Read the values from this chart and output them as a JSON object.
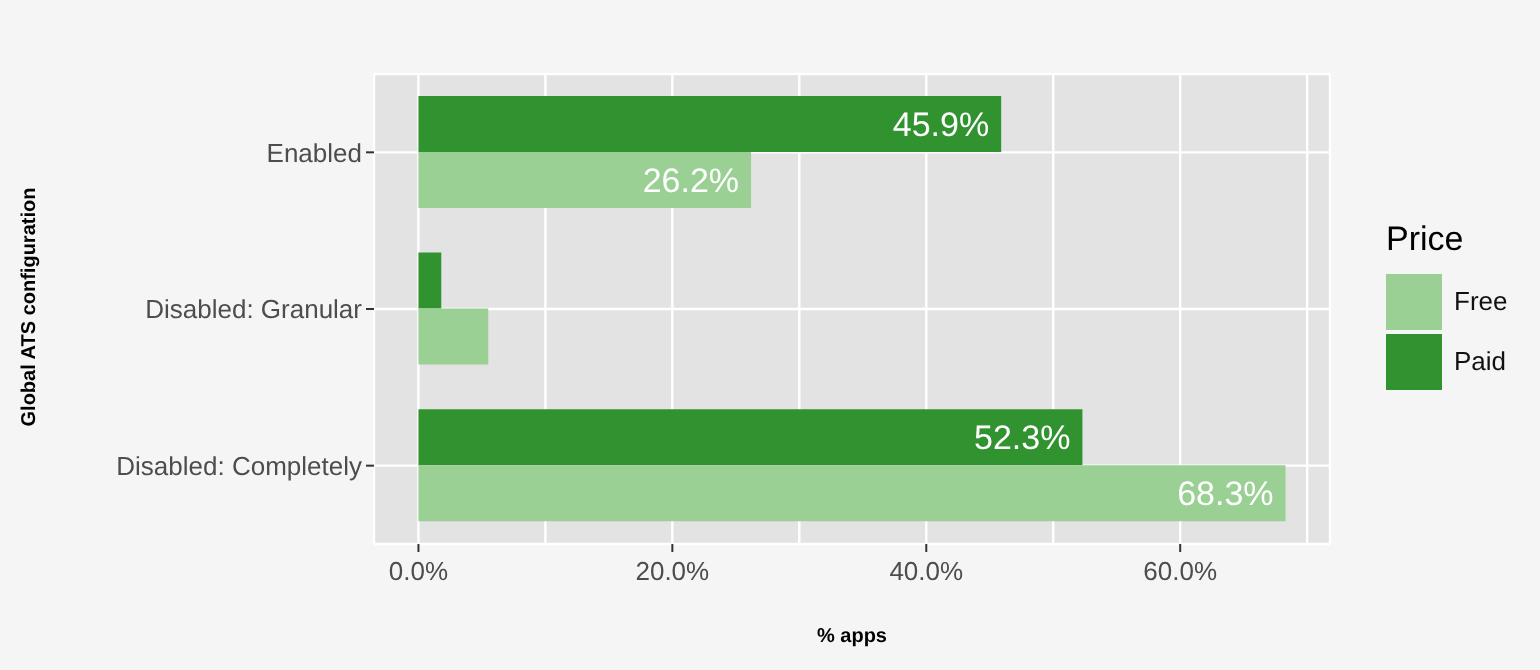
{
  "chart_data": {
    "type": "bar",
    "orientation": "horizontal",
    "xlabel": "% apps",
    "ylabel": "Global ATS configuration",
    "legend_title": "Price",
    "legend": "right",
    "categories": [
      "Enabled",
      "Disabled: Granular",
      "Disabled: Completely"
    ],
    "series": [
      {
        "name": "Free",
        "color": "#9ad093",
        "values": [
          26.2,
          5.5,
          68.3
        ],
        "value_labels": [
          "26.2%",
          null,
          "68.3%"
        ]
      },
      {
        "name": "Paid",
        "color": "#31932f",
        "values": [
          45.9,
          1.8,
          52.3
        ],
        "value_labels": [
          "45.9%",
          null,
          "52.3%"
        ]
      }
    ],
    "xlim": [
      -3.5,
      71.8
    ],
    "xticks": [
      {
        "value": 0,
        "label": "0.0%"
      },
      {
        "value": 10,
        "label": null
      },
      {
        "value": 20,
        "label": "20.0%"
      },
      {
        "value": 30,
        "label": null
      },
      {
        "value": 40,
        "label": "40.0%"
      },
      {
        "value": 50,
        "label": null
      },
      {
        "value": 60,
        "label": "60.0%"
      },
      {
        "value": 70,
        "label": null
      }
    ],
    "grid": true
  }
}
